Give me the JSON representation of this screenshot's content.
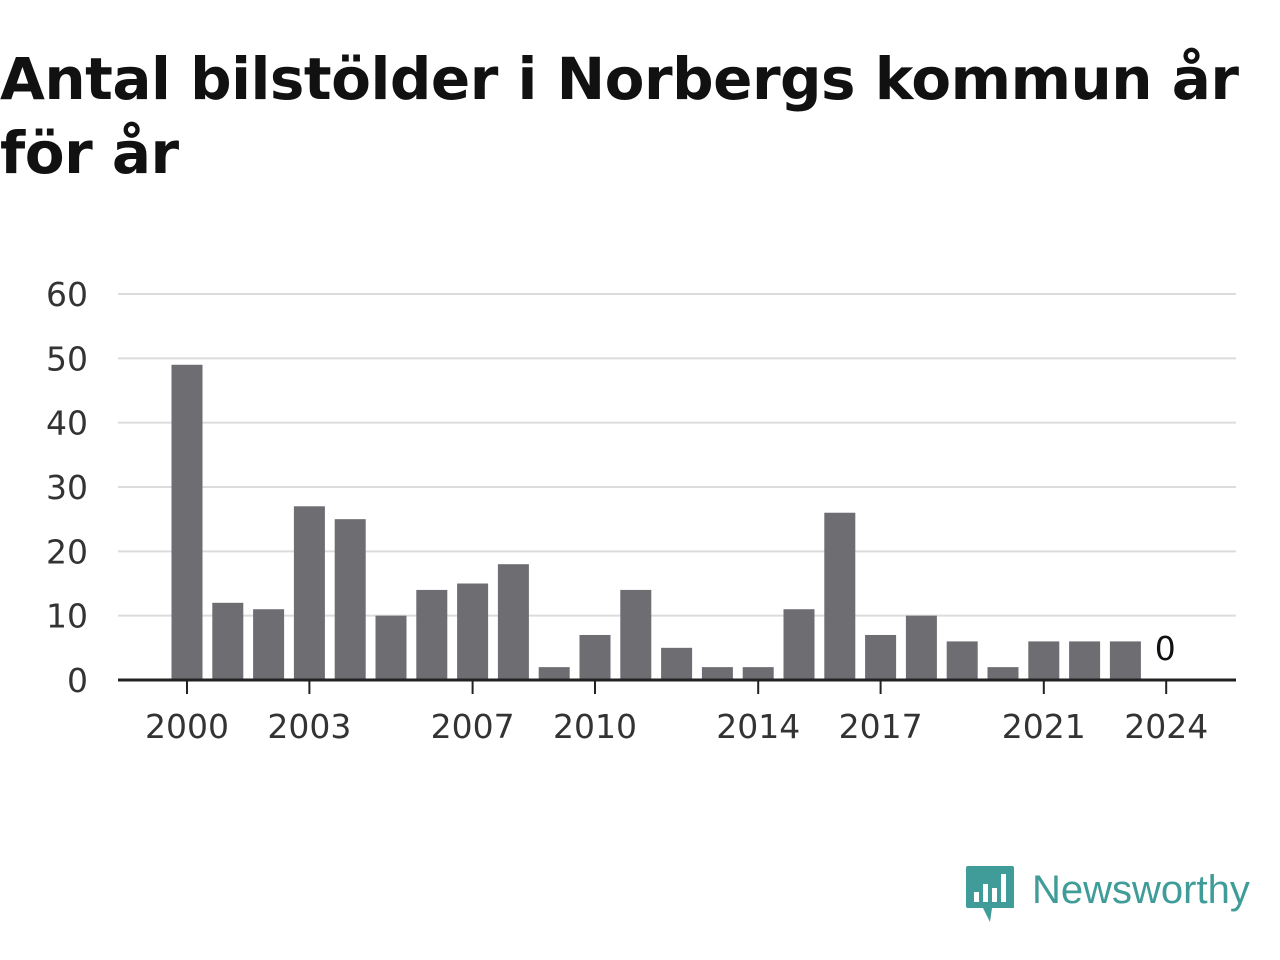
{
  "title": "Antal bilstölder i Norbergs kommun år för år",
  "brand": {
    "name": "Newsworthy",
    "icon": "newsworthy-logo-icon",
    "color": "#3f9c98"
  },
  "chart_data": {
    "type": "bar",
    "title": "Antal bilstölder i Norbergs kommun år för år",
    "xlabel": "",
    "ylabel": "",
    "categories": [
      "2000",
      "2001",
      "2002",
      "2003",
      "2004",
      "2005",
      "2006",
      "2007",
      "2008",
      "2009",
      "2010",
      "2011",
      "2012",
      "2013",
      "2014",
      "2015",
      "2016",
      "2017",
      "2018",
      "2019",
      "2020",
      "2021",
      "2022",
      "2023",
      "2024"
    ],
    "values": [
      49,
      12,
      11,
      27,
      25,
      10,
      14,
      15,
      18,
      2,
      7,
      14,
      5,
      2,
      2,
      11,
      26,
      7,
      10,
      6,
      2,
      6,
      6,
      6,
      0
    ],
    "x_tick_labels": [
      "2000",
      "2003",
      "2007",
      "2010",
      "2014",
      "2017",
      "2021",
      "2024"
    ],
    "y_tick_labels": [
      "0",
      "10",
      "20",
      "30",
      "40",
      "50",
      "60"
    ],
    "ylim": [
      0,
      60
    ],
    "data_labels": [
      {
        "category": "2024",
        "text": "0"
      }
    ],
    "grid": true,
    "legend": "none",
    "bar_color": "#6e6d72"
  }
}
